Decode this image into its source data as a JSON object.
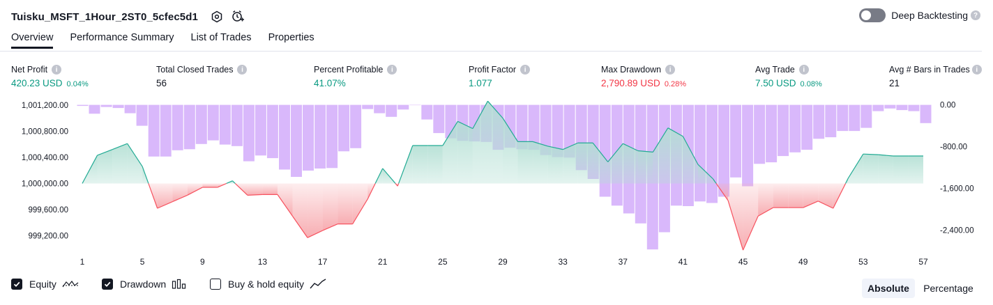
{
  "header": {
    "strategy_name": "Tuisku_MSFT_1Hour_2ST0_5cfec5d1",
    "settings_icon": "gear-icon",
    "alert_icon": "add-alert-icon"
  },
  "deep_backtesting": {
    "label": "Deep Backtesting",
    "enabled": false,
    "help_icon": "?"
  },
  "tabs": [
    {
      "label": "Overview",
      "active": true
    },
    {
      "label": "Performance Summary",
      "active": false
    },
    {
      "label": "List of Trades",
      "active": false
    },
    {
      "label": "Properties",
      "active": false
    }
  ],
  "metrics": {
    "info_glyph": "i",
    "net_profit": {
      "label": "Net Profit",
      "value": "420.23 USD",
      "pct": "0.04%"
    },
    "total_closed_trades": {
      "label": "Total Closed Trades",
      "value": "56"
    },
    "percent_profitable": {
      "label": "Percent Profitable",
      "value": "41.07%"
    },
    "profit_factor": {
      "label": "Profit Factor",
      "value": "1.077"
    },
    "max_drawdown": {
      "label": "Max Drawdown",
      "value": "2,790.89 USD",
      "pct": "0.28%"
    },
    "avg_trade": {
      "label": "Avg Trade",
      "value": "7.50 USD",
      "pct": "0.08%"
    },
    "avg_bars": {
      "label": "Avg # Bars in Trades",
      "value": "21"
    }
  },
  "chart_data": {
    "type": "line",
    "left_axis": {
      "ticks": [
        1001200,
        1000800,
        1000400,
        1000000,
        999600,
        999200
      ],
      "tick_labels": [
        "1,001,200.00",
        "1,000,800.00",
        "1,000,400.00",
        "1,000,000.00",
        "999,600.00",
        "999,200.00"
      ],
      "range": [
        998950,
        1001230
      ]
    },
    "right_axis": {
      "ticks": [
        0,
        -800,
        -1600,
        -2400
      ],
      "tick_labels": [
        "0.00",
        "-800.00",
        "-1,600.00",
        "-2,400.00"
      ],
      "range": [
        -2820,
        35
      ]
    },
    "x_axis": {
      "tick_labels": [
        "1",
        "5",
        "9",
        "13",
        "17",
        "21",
        "25",
        "29",
        "33",
        "37",
        "41",
        "45",
        "49",
        "53",
        "57"
      ],
      "range": [
        1,
        57
      ]
    },
    "baseline": 1000000,
    "equity": [
      [
        1,
        1000000
      ],
      [
        2,
        1000430
      ],
      [
        3,
        1000520
      ],
      [
        4,
        1000610
      ],
      [
        5,
        1000260
      ],
      [
        6,
        999620
      ],
      [
        7,
        999720
      ],
      [
        8,
        999820
      ],
      [
        9,
        999940
      ],
      [
        10,
        999940
      ],
      [
        11,
        1000040
      ],
      [
        12,
        999820
      ],
      [
        13,
        999830
      ],
      [
        14,
        999830
      ],
      [
        15,
        999500
      ],
      [
        16,
        999170
      ],
      [
        17,
        999280
      ],
      [
        18,
        999380
      ],
      [
        19,
        999380
      ],
      [
        20,
        999760
      ],
      [
        21,
        1000230
      ],
      [
        22,
        999960
      ],
      [
        23,
        1000580
      ],
      [
        24,
        1000580
      ],
      [
        25,
        1000580
      ],
      [
        26,
        1000950
      ],
      [
        27,
        1000840
      ],
      [
        28,
        1001260
      ],
      [
        29,
        1001000
      ],
      [
        30,
        1000640
      ],
      [
        31,
        1000640
      ],
      [
        32,
        1000570
      ],
      [
        33,
        1000520
      ],
      [
        34,
        1000620
      ],
      [
        35,
        1000620
      ],
      [
        36,
        1000330
      ],
      [
        37,
        1000610
      ],
      [
        38,
        1000500
      ],
      [
        39,
        1000480
      ],
      [
        40,
        1000850
      ],
      [
        41,
        1000720
      ],
      [
        42,
        1000290
      ],
      [
        43,
        1000070
      ],
      [
        44,
        999740
      ],
      [
        45,
        998980
      ],
      [
        46,
        999500
      ],
      [
        47,
        999630
      ],
      [
        48,
        999630
      ],
      [
        49,
        999630
      ],
      [
        50,
        999730
      ],
      [
        51,
        999620
      ],
      [
        52,
        1000080
      ],
      [
        53,
        1000450
      ],
      [
        54,
        1000440
      ],
      [
        55,
        1000420
      ],
      [
        56,
        1000420
      ],
      [
        57,
        1000420
      ]
    ],
    "drawdown": [
      -20,
      -170,
      -40,
      -60,
      -160,
      -400,
      -990,
      -990,
      -870,
      -850,
      -750,
      -680,
      -760,
      -790,
      -1080,
      -970,
      -1020,
      -1240,
      -1380,
      -1260,
      -1220,
      -1210,
      -890,
      -830,
      -80,
      -160,
      -230,
      -90,
      0,
      -280,
      -540,
      -640,
      -690,
      -700,
      -710,
      -860,
      -820,
      -850,
      -860,
      -960,
      -1000,
      -1010,
      -1250,
      -1420,
      -1760,
      -1930,
      -2080,
      -2270,
      -2770,
      -2440,
      -1930,
      -1940,
      -1850,
      -1880,
      -1760,
      -1390,
      -1560,
      -1130,
      -1100,
      -980,
      -910,
      -860,
      -650,
      -620,
      -500,
      -500,
      -440,
      -120,
      -70,
      -100,
      -120,
      -350
    ],
    "colors": {
      "profit_line": "#22ab94",
      "loss_line": "#f7525f",
      "profit_fill_top": "#b2dfd3",
      "loss_fill_bottom": "#f7a9ae",
      "drawdown_bar": "#d9b8fb"
    }
  },
  "legend": {
    "equity": {
      "label": "Equity",
      "checked": true
    },
    "drawdown": {
      "label": "Drawdown",
      "checked": true
    },
    "buy_hold": {
      "label": "Buy & hold equity",
      "checked": false
    }
  },
  "view_modes": [
    {
      "label": "Absolute",
      "active": true
    },
    {
      "label": "Percentage",
      "active": false
    }
  ]
}
